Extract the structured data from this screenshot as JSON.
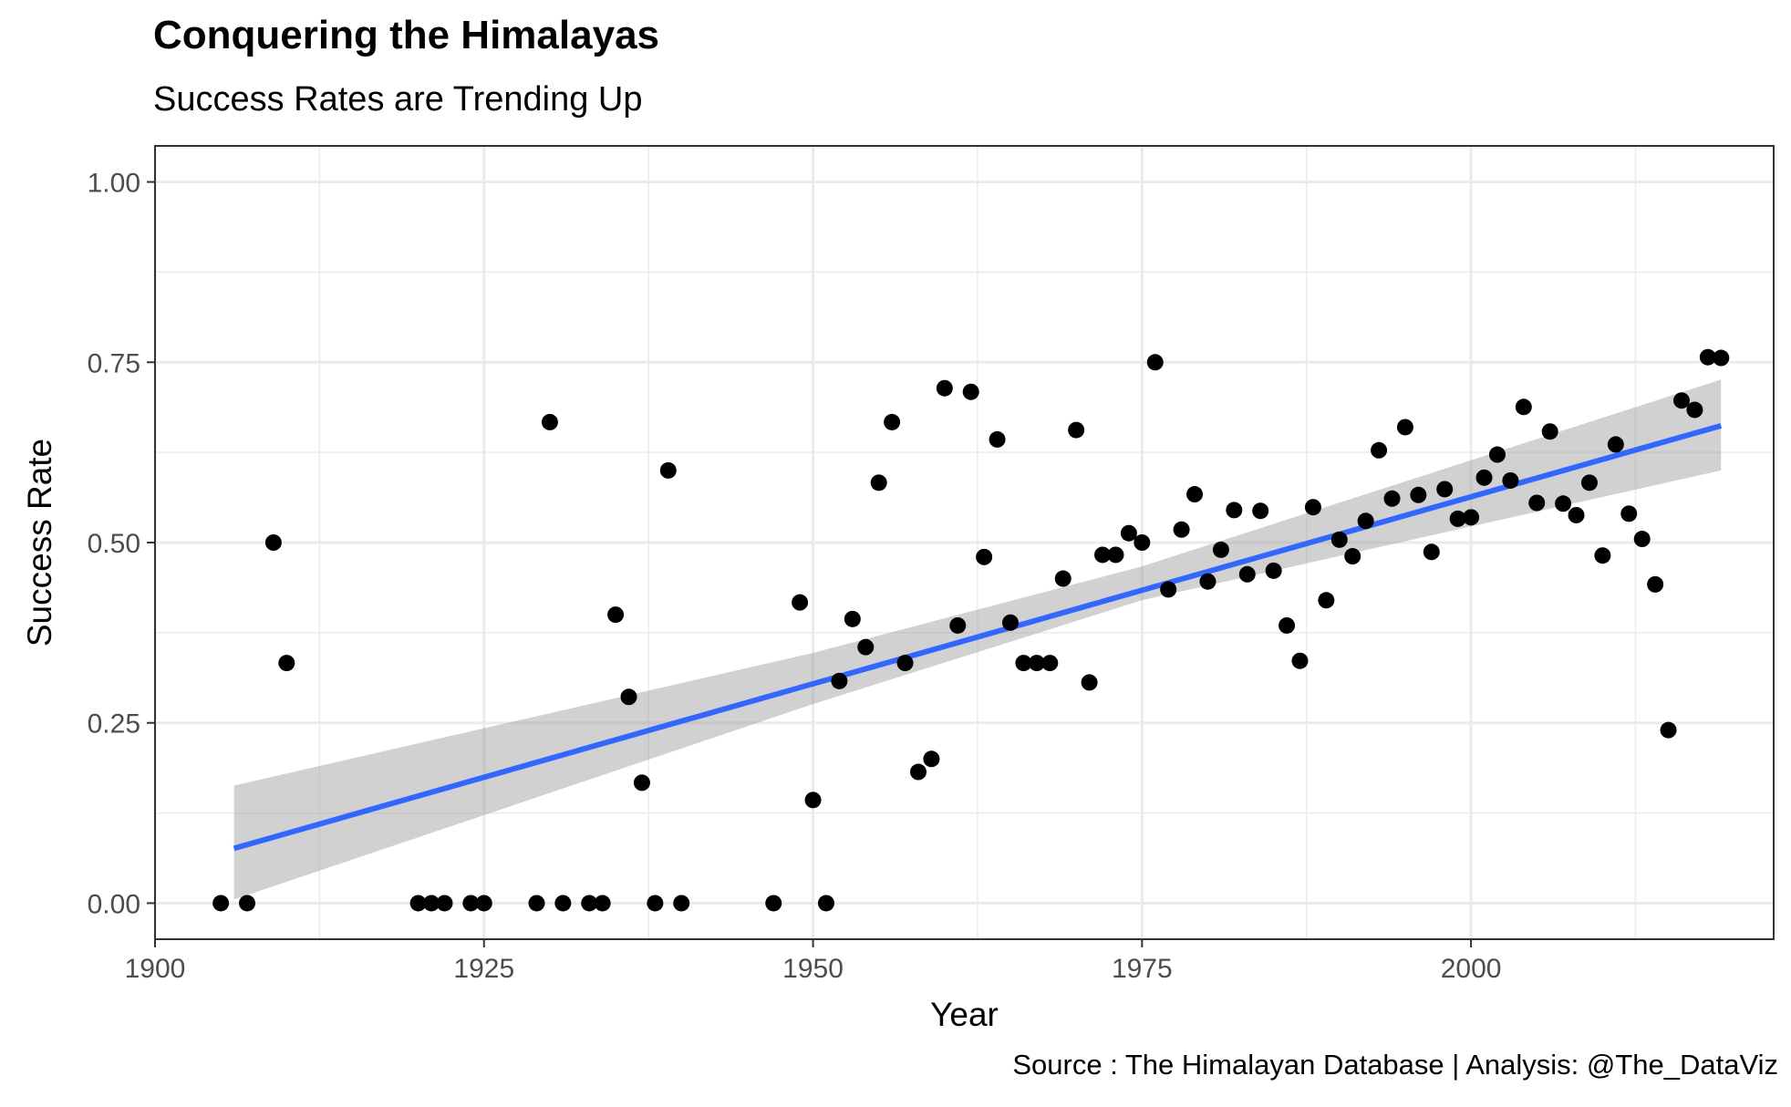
{
  "title": "Conquering the Himalayas",
  "subtitle": "Success Rates are Trending Up",
  "caption": "Source : The Himalayan Database | Analysis: @The_DataViz",
  "chart_data": {
    "type": "scatter",
    "title": "Conquering the Himalayas",
    "subtitle": "Success Rates are Trending Up",
    "xlabel": "Year",
    "ylabel": "Success Rate",
    "xlim": [
      1900,
      2023
    ],
    "ylim": [
      -0.05,
      1.05
    ],
    "x_ticks": [
      1900,
      1925,
      1950,
      1975,
      2000
    ],
    "x_tick_labels": [
      "1900",
      "1925",
      "1950",
      "1975",
      "2000"
    ],
    "y_ticks": [
      0,
      0.25,
      0.5,
      0.75,
      1
    ],
    "y_tick_labels": [
      "0.00",
      "0.25",
      "0.50",
      "0.75",
      "1.00"
    ],
    "grid": true,
    "colors": {
      "points": "#000000",
      "trend": "#3366ff",
      "band": "#999999",
      "grid": "#ebebeb",
      "panel_border": "#333333"
    },
    "points": [
      {
        "x": 1905,
        "y": 0
      },
      {
        "x": 1907,
        "y": 0
      },
      {
        "x": 1909,
        "y": 0.5
      },
      {
        "x": 1910,
        "y": 0.333
      },
      {
        "x": 1920,
        "y": 0
      },
      {
        "x": 1921,
        "y": 0
      },
      {
        "x": 1922,
        "y": 0
      },
      {
        "x": 1924,
        "y": 0
      },
      {
        "x": 1925,
        "y": 0
      },
      {
        "x": 1929,
        "y": 0
      },
      {
        "x": 1930,
        "y": 0.667
      },
      {
        "x": 1931,
        "y": 0
      },
      {
        "x": 1933,
        "y": 0
      },
      {
        "x": 1934,
        "y": 0
      },
      {
        "x": 1935,
        "y": 0.4
      },
      {
        "x": 1936,
        "y": 0.286
      },
      {
        "x": 1937,
        "y": 0.167
      },
      {
        "x": 1938,
        "y": 0
      },
      {
        "x": 1939,
        "y": 0.6
      },
      {
        "x": 1940,
        "y": 0
      },
      {
        "x": 1947,
        "y": 0
      },
      {
        "x": 1949,
        "y": 0.417
      },
      {
        "x": 1950,
        "y": 0.143
      },
      {
        "x": 1951,
        "y": 0
      },
      {
        "x": 1952,
        "y": 0.308
      },
      {
        "x": 1953,
        "y": 0.394
      },
      {
        "x": 1954,
        "y": 0.355
      },
      {
        "x": 1955,
        "y": 0.583
      },
      {
        "x": 1956,
        "y": 0.667
      },
      {
        "x": 1957,
        "y": 0.333
      },
      {
        "x": 1958,
        "y": 0.182
      },
      {
        "x": 1959,
        "y": 0.2
      },
      {
        "x": 1960,
        "y": 0.714
      },
      {
        "x": 1961,
        "y": 0.385
      },
      {
        "x": 1962,
        "y": 0.709
      },
      {
        "x": 1963,
        "y": 0.48
      },
      {
        "x": 1964,
        "y": 0.643
      },
      {
        "x": 1965,
        "y": 0.389
      },
      {
        "x": 1966,
        "y": 0.333
      },
      {
        "x": 1967,
        "y": 0.333
      },
      {
        "x": 1968,
        "y": 0.333
      },
      {
        "x": 1969,
        "y": 0.45
      },
      {
        "x": 1970,
        "y": 0.656
      },
      {
        "x": 1971,
        "y": 0.306
      },
      {
        "x": 1972,
        "y": 0.483
      },
      {
        "x": 1973,
        "y": 0.483
      },
      {
        "x": 1974,
        "y": 0.513
      },
      {
        "x": 1975,
        "y": 0.5
      },
      {
        "x": 1976,
        "y": 0.75
      },
      {
        "x": 1977,
        "y": 0.435
      },
      {
        "x": 1978,
        "y": 0.518
      },
      {
        "x": 1979,
        "y": 0.567
      },
      {
        "x": 1980,
        "y": 0.446
      },
      {
        "x": 1981,
        "y": 0.49
      },
      {
        "x": 1982,
        "y": 0.545
      },
      {
        "x": 1983,
        "y": 0.456
      },
      {
        "x": 1984,
        "y": 0.544
      },
      {
        "x": 1985,
        "y": 0.461
      },
      {
        "x": 1986,
        "y": 0.385
      },
      {
        "x": 1987,
        "y": 0.336
      },
      {
        "x": 1988,
        "y": 0.549
      },
      {
        "x": 1989,
        "y": 0.42
      },
      {
        "x": 1990,
        "y": 0.504
      },
      {
        "x": 1991,
        "y": 0.481
      },
      {
        "x": 1992,
        "y": 0.53
      },
      {
        "x": 1993,
        "y": 0.628
      },
      {
        "x": 1994,
        "y": 0.561
      },
      {
        "x": 1995,
        "y": 0.66
      },
      {
        "x": 1996,
        "y": 0.566
      },
      {
        "x": 1997,
        "y": 0.487
      },
      {
        "x": 1998,
        "y": 0.574
      },
      {
        "x": 1999,
        "y": 0.533
      },
      {
        "x": 2000,
        "y": 0.535
      },
      {
        "x": 2001,
        "y": 0.59
      },
      {
        "x": 2002,
        "y": 0.622
      },
      {
        "x": 2003,
        "y": 0.586
      },
      {
        "x": 2004,
        "y": 0.688
      },
      {
        "x": 2005,
        "y": 0.555
      },
      {
        "x": 2006,
        "y": 0.654
      },
      {
        "x": 2007,
        "y": 0.554
      },
      {
        "x": 2008,
        "y": 0.538
      },
      {
        "x": 2009,
        "y": 0.583
      },
      {
        "x": 2010,
        "y": 0.482
      },
      {
        "x": 2011,
        "y": 0.636
      },
      {
        "x": 2012,
        "y": 0.54
      },
      {
        "x": 2013,
        "y": 0.505
      },
      {
        "x": 2014,
        "y": 0.442
      },
      {
        "x": 2015,
        "y": 0.24
      },
      {
        "x": 2016,
        "y": 0.697
      },
      {
        "x": 2017,
        "y": 0.684
      },
      {
        "x": 2018,
        "y": 0.757
      },
      {
        "x": 2019,
        "y": 0.756
      }
    ],
    "trend_line": {
      "x": [
        1906,
        2019
      ],
      "y": [
        0.076,
        0.662
      ]
    },
    "confidence_band": {
      "x": [
        1906,
        1950,
        1975,
        2019
      ],
      "upper": [
        0.163,
        0.347,
        0.467,
        0.726
      ],
      "lower": [
        0.005,
        0.276,
        0.42,
        0.6
      ]
    }
  }
}
